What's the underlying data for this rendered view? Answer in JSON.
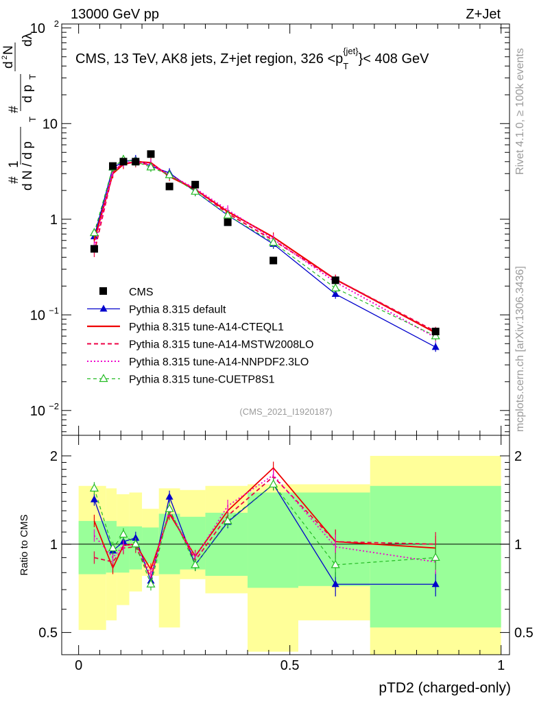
{
  "header": {
    "left_title": "13000 GeV pp",
    "right_title": "Z+Jet",
    "plot_title": "CMS, 13 TeV, AK8 jets, Z+jet region, 326 <p",
    "plot_title_sup": "{jet}",
    "plot_title_sub": "T",
    "plot_title_end": "}< 408 GeV",
    "side_label_top": "Rivet 4.1.0, ≥ 100k events",
    "side_label_bottom": "mcplots.cern.ch [arXiv:1306.3436]",
    "analysis_id": "(CMS_2021_I1920187)"
  },
  "y_axis_main": {
    "label_parts": [
      "#",
      "1",
      "d N / d p",
      "T",
      "#",
      "d p",
      "T",
      "d",
      "2",
      "N",
      "dλ"
    ],
    "ticks": [
      {
        "value": 0.01,
        "label": "10",
        "exp": "−2"
      },
      {
        "value": 0.1,
        "label": "10",
        "exp": "−1"
      },
      {
        "value": 1,
        "label": "1",
        "exp": ""
      },
      {
        "value": 10,
        "label": "10",
        "exp": ""
      },
      {
        "value": 100,
        "label": "10",
        "exp": "2"
      }
    ]
  },
  "y_axis_ratio": {
    "label": "Ratio to CMS",
    "ticks": [
      {
        "value": 0.5,
        "label": "0.5"
      },
      {
        "value": 1,
        "label": "1"
      },
      {
        "value": 2,
        "label": "2"
      }
    ]
  },
  "x_axis": {
    "label": "pTD2 (charged-only)",
    "ticks": [
      {
        "value": 0,
        "label": "0"
      },
      {
        "value": 0.5,
        "label": "0.5"
      },
      {
        "value": 1,
        "label": "1"
      }
    ]
  },
  "legend": [
    {
      "label": "CMS",
      "color": "#000000",
      "style": "square"
    },
    {
      "label": "Pythia 8.315 default",
      "color": "#0000cc",
      "style": "triangle"
    },
    {
      "label": "Pythia 8.315 tune-A14-CTEQL1",
      "color": "#ee0000",
      "style": "solid"
    },
    {
      "label": "Pythia 8.315 tune-A14-MSTW2008LO",
      "color": "#ee0044",
      "style": "dashed"
    },
    {
      "label": "Pythia 8.315 tune-A14-NNPDF2.3LO",
      "color": "#ee00cc",
      "style": "dotted"
    },
    {
      "label": "Pythia 8.315 tune-CUETP8S1",
      "color": "#22bb22",
      "style": "open-triangle"
    }
  ],
  "chart_data": {
    "type": "line",
    "x": [
      0.037,
      0.081,
      0.106,
      0.135,
      0.171,
      0.215,
      0.276,
      0.353,
      0.461,
      0.608,
      0.845
    ],
    "bin_edges": [
      0.0,
      0.065,
      0.09,
      0.12,
      0.15,
      0.19,
      0.24,
      0.3,
      0.4,
      0.52,
      0.69,
      1.0
    ],
    "series": [
      {
        "name": "CMS",
        "values": [
          0.49,
          3.6,
          4.0,
          4.0,
          4.8,
          2.2,
          2.3,
          0.93,
          0.37,
          0.23,
          0.067
        ]
      },
      {
        "name": "Pythia 8.315 default",
        "values": [
          0.66,
          3.45,
          4.0,
          4.2,
          3.6,
          3.05,
          1.95,
          1.1,
          0.55,
          0.165,
          0.046
        ]
      },
      {
        "name": "Pythia 8.315 tune-A14-CTEQL1",
        "values": [
          0.6,
          3.0,
          3.75,
          4.0,
          3.9,
          2.8,
          2.05,
          1.2,
          0.65,
          0.235,
          0.065
        ]
      },
      {
        "name": "Pythia 8.315 tune-A14-MSTW2008LO",
        "values": [
          0.45,
          3.1,
          3.9,
          3.9,
          3.7,
          2.9,
          2.05,
          1.15,
          0.6,
          0.235,
          0.067
        ]
      },
      {
        "name": "Pythia 8.315 tune-A14-NNPDF2.3LO",
        "values": [
          0.52,
          3.2,
          3.9,
          4.0,
          3.8,
          2.9,
          2.1,
          1.25,
          0.62,
          0.22,
          0.058
        ]
      },
      {
        "name": "Pythia 8.315 tune-CUETP8S1",
        "values": [
          0.72,
          3.5,
          4.2,
          4.0,
          3.5,
          2.9,
          1.95,
          1.1,
          0.57,
          0.19,
          0.06
        ]
      }
    ],
    "ratio_series": [
      {
        "name": "Pythia 8.315 default",
        "values": [
          1.42,
          0.95,
          1.02,
          1.05,
          0.75,
          1.45,
          0.85,
          1.19,
          1.6,
          0.73,
          0.73
        ]
      },
      {
        "name": "Pythia 8.315 tune-A14-CTEQL1",
        "values": [
          1.2,
          0.83,
          0.99,
          1.0,
          0.82,
          1.27,
          0.91,
          1.3,
          1.82,
          1.02,
          0.97
        ]
      },
      {
        "name": "Pythia 8.315 tune-A14-MSTW2008LO",
        "values": [
          0.9,
          0.87,
          0.97,
          0.98,
          0.77,
          1.3,
          0.88,
          1.25,
          1.7,
          1.02,
          1.0
        ]
      },
      {
        "name": "Pythia 8.315 tune-A14-NNPDF2.3LO",
        "values": [
          1.07,
          0.9,
          0.99,
          1.0,
          0.79,
          1.3,
          0.9,
          1.35,
          1.72,
          0.98,
          0.87
        ]
      },
      {
        "name": "Pythia 8.315 tune-CUETP8S1",
        "values": [
          1.55,
          0.97,
          1.08,
          1.0,
          0.73,
          1.32,
          0.85,
          1.2,
          1.6,
          0.85,
          0.9
        ]
      }
    ],
    "ratio_band_outer": [
      [
        0.51,
        1.58
      ],
      [
        0.55,
        1.55
      ],
      [
        0.62,
        1.48
      ],
      [
        0.69,
        1.5
      ],
      [
        0.78,
        1.32
      ],
      [
        0.52,
        1.55
      ],
      [
        0.76,
        1.53
      ],
      [
        0.68,
        1.58
      ],
      [
        0.43,
        1.6
      ],
      [
        0.55,
        1.6
      ],
      [
        0.42,
        2.0
      ]
    ],
    "ratio_band_inner": [
      [
        0.79,
        1.2
      ],
      [
        0.8,
        1.2
      ],
      [
        0.8,
        1.15
      ],
      [
        0.82,
        1.15
      ],
      [
        0.86,
        1.14
      ],
      [
        0.79,
        1.27
      ],
      [
        0.82,
        1.24
      ],
      [
        0.78,
        1.28
      ],
      [
        0.71,
        1.5
      ],
      [
        0.72,
        1.5
      ],
      [
        0.52,
        1.58
      ]
    ],
    "xlim": [
      -0.04,
      1.02
    ],
    "ylim_main": [
      0.0055,
      110
    ],
    "ylim_ratio": [
      0.42,
      2.35
    ],
    "title": "CMS, 13 TeV, AK8 jets, Z+jet region, 326 < pT < 408 GeV",
    "xlabel": "pTD2 (charged-only)",
    "ylabel": "1/N dN/dλ",
    "ratio_ylabel": "Ratio to CMS"
  }
}
